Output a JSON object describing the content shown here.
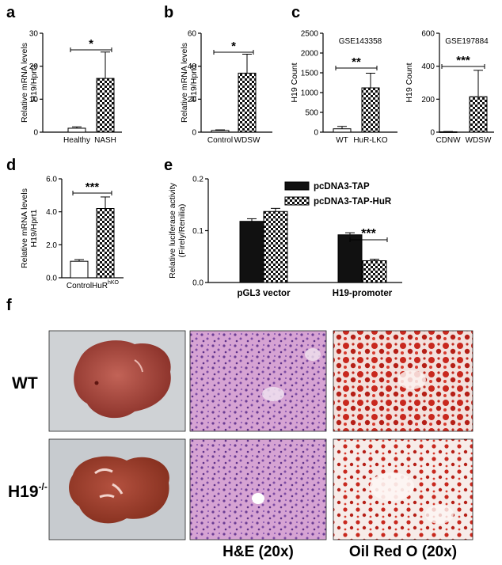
{
  "figure": {
    "panel_letters": [
      "a",
      "b",
      "c",
      "d",
      "e",
      "f"
    ],
    "row_labels": {
      "wt": "WT",
      "h19_base": "H19",
      "h19_sup": "-/-"
    },
    "caption_he": "H&E  (20x)",
    "caption_oil": "Oil Red O (20x)"
  },
  "colors": {
    "black": "#111111",
    "he_pink": "#c98fc7",
    "he_purple": "#8a54a8",
    "oil_red": "#c8281e",
    "liver_wt": "#a0423a",
    "liver_ko": "#9a3a2c"
  },
  "chart_data": [
    {
      "id": "a",
      "type": "bar",
      "ylabel": "Relative mRNA levels",
      "ylabel2": "H19/Hprt1",
      "categories": [
        "Healthy",
        "NASH"
      ],
      "values": [
        1.2,
        16.3
      ],
      "errors": [
        0.4,
        8.0
      ],
      "ylim": [
        0,
        30
      ],
      "yticks": [
        "0",
        "10",
        "20",
        "30"
      ],
      "sig": "*"
    },
    {
      "id": "b",
      "type": "bar",
      "ylabel": "Relative mRNA levels",
      "ylabel2": "H19/Hprt1",
      "categories": [
        "Control",
        "WDSW"
      ],
      "values": [
        1.0,
        35.8
      ],
      "errors": [
        0.4,
        11.5
      ],
      "ylim": [
        0,
        60
      ],
      "yticks": [
        "0",
        "20",
        "40",
        "60"
      ],
      "sig": "*"
    },
    {
      "id": "c1",
      "type": "bar",
      "title": "GSE143358",
      "ylabel": "H19 Count",
      "categories": [
        "WT",
        "HuR-LKO"
      ],
      "values": [
        85,
        1120
      ],
      "errors": [
        60,
        370
      ],
      "ylim": [
        0,
        2500
      ],
      "yticks": [
        "0",
        "500",
        "1000",
        "1500",
        "2000",
        "2500"
      ],
      "sig": "**"
    },
    {
      "id": "c2",
      "type": "bar",
      "title": "GSE197884",
      "ylabel": "H19 Count",
      "categories": [
        "CDNW",
        "WDSW"
      ],
      "values": [
        2,
        215
      ],
      "errors": [
        2,
        160
      ],
      "ylim": [
        0,
        600
      ],
      "yticks": [
        "0",
        "200",
        "400",
        "600"
      ],
      "sig": "***"
    },
    {
      "id": "d",
      "type": "bar",
      "ylabel": "Relative mRNA levels",
      "ylabel2": "H19/Hprt1",
      "categories": [
        "Control",
        "HuR"
      ],
      "category_sup": [
        "",
        "hKO"
      ],
      "values": [
        1.0,
        4.2
      ],
      "errors": [
        0.1,
        0.7
      ],
      "ylim": [
        0,
        6
      ],
      "yticks": [
        "0.0",
        "2.0",
        "4.0",
        "6.0"
      ],
      "sig": "***"
    },
    {
      "id": "e",
      "type": "bar",
      "ylabel": "Relative luciferase activity",
      "ylabel2": "(Firely/Renilia)",
      "categories": [
        "pGL3 vector",
        "H19-promoter"
      ],
      "series": [
        {
          "name": "pcDNA3-TAP",
          "values": [
            0.118,
            0.092
          ],
          "errors": [
            0.005,
            0.004
          ]
        },
        {
          "name": "pcDNA3-TAP-HuR",
          "values": [
            0.137,
            0.042
          ],
          "errors": [
            0.006,
            0.003
          ]
        }
      ],
      "ylim": [
        0,
        0.2
      ],
      "yticks": [
        "0.0",
        "0.1",
        "0.2"
      ],
      "sig": "***",
      "legend": "top-right"
    }
  ]
}
